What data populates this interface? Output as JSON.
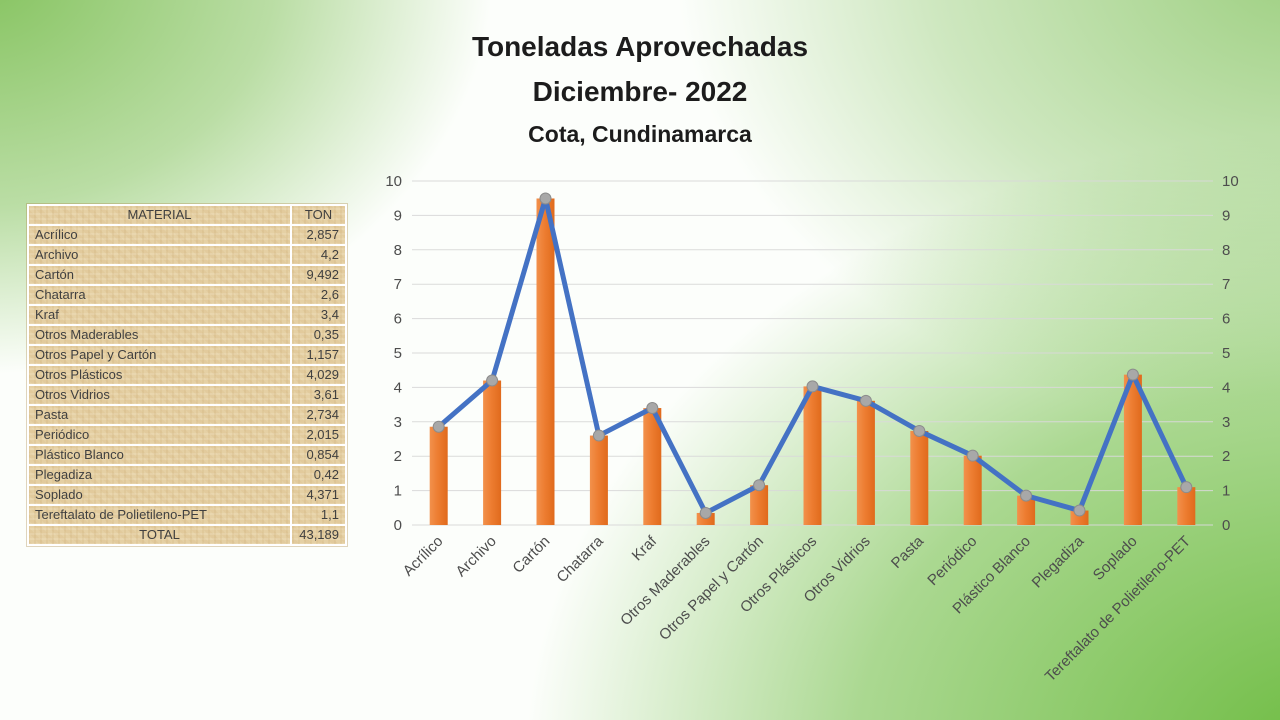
{
  "title": {
    "line1": "Toneladas Aprovechadas",
    "line2": "Diciembre- 2022",
    "line3": "Cota, Cundinamarca"
  },
  "table": {
    "headers": [
      "MATERIAL",
      "TON"
    ],
    "rows": [
      {
        "material": "Acrílico",
        "ton": "2,857"
      },
      {
        "material": "Archivo",
        "ton": "4,2"
      },
      {
        "material": "Cartón",
        "ton": "9,492"
      },
      {
        "material": "Chatarra",
        "ton": "2,6"
      },
      {
        "material": "Kraf",
        "ton": "3,4"
      },
      {
        "material": "Otros Maderables",
        "ton": "0,35"
      },
      {
        "material": "Otros Papel y Cartón",
        "ton": "1,157"
      },
      {
        "material": "Otros Plásticos",
        "ton": "4,029"
      },
      {
        "material": "Otros Vidrios",
        "ton": "3,61"
      },
      {
        "material": "Pasta",
        "ton": "2,734"
      },
      {
        "material": "Periódico",
        "ton": "2,015"
      },
      {
        "material": "Plástico Blanco",
        "ton": "0,854"
      },
      {
        "material": "Plegadiza",
        "ton": "0,42"
      },
      {
        "material": "Soplado",
        "ton": "4,371"
      },
      {
        "material": "Tereftalato de Polietileno-PET",
        "ton": "1,1"
      }
    ],
    "total": {
      "label": "TOTAL",
      "value": "43,189"
    }
  },
  "chart_data": {
    "type": "bar",
    "combo_note": "bars with overlaid line and gray round markers, same values",
    "categories": [
      "Acrílico",
      "Archivo",
      "Cartón",
      "Chatarra",
      "Kraf",
      "Otros Maderables",
      "Otros Papel y Cartón",
      "Otros Plásticos",
      "Otros Vidrios",
      "Pasta",
      "Periódico",
      "Plástico Blanco",
      "Plegadiza",
      "Soplado",
      "Tereftalato de Polietileno-PET"
    ],
    "series": [
      {
        "name": "bar-series",
        "type": "bar",
        "values": [
          2.857,
          4.2,
          9.492,
          2.6,
          3.4,
          0.35,
          1.157,
          4.029,
          3.61,
          2.734,
          2.015,
          0.854,
          0.42,
          4.371,
          1.1
        ]
      },
      {
        "name": "line-series",
        "type": "line",
        "values": [
          2.857,
          4.2,
          9.492,
          2.6,
          3.4,
          0.35,
          1.157,
          4.029,
          3.61,
          2.734,
          2.015,
          0.854,
          0.42,
          4.371,
          1.1
        ]
      }
    ],
    "title": "",
    "xlabel": "",
    "ylabel": "",
    "ylim": [
      0,
      10
    ],
    "yticks": [
      0,
      1,
      2,
      3,
      4,
      5,
      6,
      7,
      8,
      9,
      10
    ],
    "dual_y_axis": true,
    "grid": true,
    "legend_position": "none"
  },
  "colors": {
    "bar_light": "#F2914C",
    "bar_mid": "#ED7D31",
    "bar_dark": "#E06A1C",
    "line": "#4472C4",
    "marker_fill": "#A8A8A8",
    "marker_stroke": "#8C8C8C",
    "grid": "#D9D9D9",
    "axis_text": "#4D4D4D",
    "title_text": "#1C1C1C",
    "table_bg": "#E4CEA0",
    "table_text": "#404040",
    "table_border": "#FFFFFF",
    "bg_green_topleft": "#79BD4F",
    "bg_green_topright": "#97CC78",
    "bg_green_bottomright": "#68B93A"
  }
}
